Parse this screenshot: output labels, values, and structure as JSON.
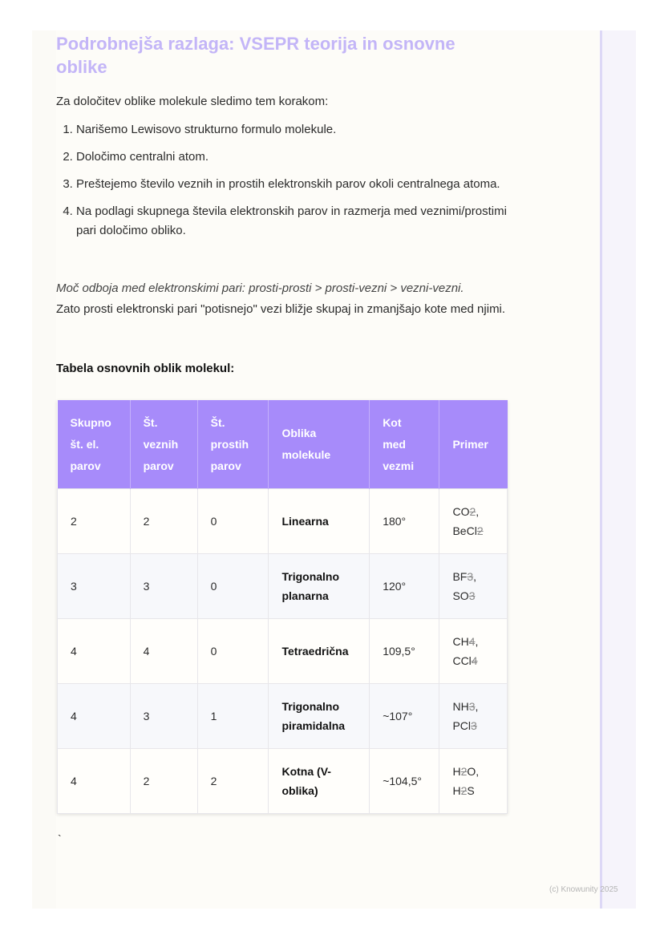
{
  "heading": "Podrobnejša razlaga: VSEPR teorija in osnovne oblike",
  "intro": "Za določitev oblike molekule sledimo tem korakom:",
  "steps": [
    "Narišemo Lewisovo strukturno formulo molekule.",
    "Določimo centralni atom.",
    "Preštejemo število veznih in prostih elektronskih parov okoli centralnega atoma.",
    "Na podlagi skupnega števila elektronskih parov in razmerja med veznimi/prostimi pari določimo obliko."
  ],
  "repulsion_italic": "Moč odboja med elektronskimi pari: prosti-prosti > prosti-vezni > vezni-vezni.",
  "repulsion_text": "Zato prosti elektronski pari \"potisnejo\" vezi bližje skupaj in zmanjšajo kote med njimi.",
  "table_title": "Tabela osnovnih oblik molekul:",
  "table": {
    "headers": [
      "Skupno št. el. parov",
      "Št. veznih parov",
      "Št. prostih parov",
      "Oblika molekule",
      "Kot med vezmi",
      "Primer"
    ],
    "rows": [
      {
        "total": "2",
        "bonding": "2",
        "lone": "0",
        "shape": "Linearna",
        "angle": "180°",
        "examples": [
          [
            [
              "CO",
              ""
            ],
            [
              "2",
              ","
            ]
          ],
          [
            [
              "BeCl",
              ""
            ],
            [
              "2",
              ""
            ]
          ]
        ]
      },
      {
        "total": "3",
        "bonding": "3",
        "lone": "0",
        "shape": "Trigonalno planarna",
        "angle": "120°",
        "examples": [
          [
            [
              "BF",
              ""
            ],
            [
              "3",
              ","
            ]
          ],
          [
            [
              "SO",
              ""
            ],
            [
              "3",
              ""
            ]
          ]
        ]
      },
      {
        "total": "4",
        "bonding": "4",
        "lone": "0",
        "shape": "Tetraedrična",
        "angle": "109,5°",
        "examples": [
          [
            [
              "CH",
              ""
            ],
            [
              "4",
              ","
            ]
          ],
          [
            [
              "CCl",
              ""
            ],
            [
              "4",
              ""
            ]
          ]
        ]
      },
      {
        "total": "4",
        "bonding": "3",
        "lone": "1",
        "shape": "Trigonalno piramidalna",
        "angle": "~107°",
        "examples": [
          [
            [
              "NH",
              ""
            ],
            [
              "3",
              ","
            ]
          ],
          [
            [
              "PCl",
              ""
            ],
            [
              "3",
              ""
            ]
          ]
        ]
      },
      {
        "total": "4",
        "bonding": "2",
        "lone": "2",
        "shape": "Kotna (V-oblika)",
        "angle": "~104,5°",
        "examples": [
          [
            [
              "H",
              ""
            ],
            [
              "2",
              "O,"
            ]
          ],
          [
            [
              "H",
              ""
            ],
            [
              "2",
              "S"
            ]
          ]
        ]
      }
    ]
  },
  "stray_mark": "`",
  "footer": "(c) Knowunity 2025",
  "colors": {
    "heading": "#c3b5f7",
    "table_header": "#a78bfa",
    "sidebar_line": "#ddd8f6"
  }
}
